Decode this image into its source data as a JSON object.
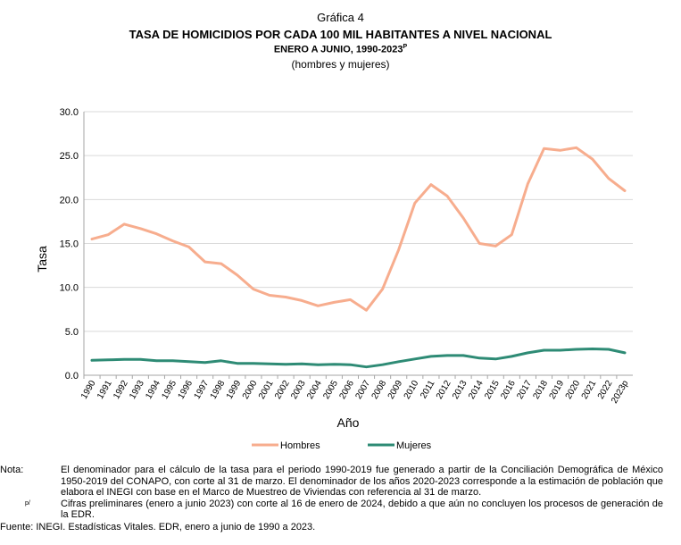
{
  "figure_label": "Gráfica 4",
  "title": "TASA DE HOMICIDIOS POR CADA 100 MIL HABITANTES A NIVEL NACIONAL",
  "subtitle_main": "ENERO A JUNIO, 1990-2023",
  "subtitle_sup": "P",
  "subtitle_note": "(hombres y mujeres)",
  "colors": {
    "hombres": "#f7ad8e",
    "mujeres": "#2e8b75",
    "grid": "#d9d9d9",
    "axis": "#a6a6a6"
  },
  "chart_data": {
    "type": "line",
    "xlabel": "Año",
    "ylabel": "Tasa",
    "ylim": [
      0,
      30
    ],
    "yticks": [
      "0.0",
      "5.0",
      "10.0",
      "15.0",
      "20.0",
      "25.0",
      "30.0"
    ],
    "grid": true,
    "legend": "bottom",
    "categories": [
      "1990",
      "1991",
      "1992",
      "1993",
      "1994",
      "1995",
      "1996",
      "1997",
      "1998",
      "1999",
      "2000",
      "2001",
      "2002",
      "2003",
      "2004",
      "2005",
      "2006",
      "2007",
      "2008",
      "2009",
      "2010",
      "2011",
      "2012",
      "2013",
      "2014",
      "2015",
      "2016",
      "2017",
      "2018",
      "2019",
      "2020",
      "2021",
      "2022",
      "2023p"
    ],
    "series": [
      {
        "name": "Hombres",
        "values": [
          15.5,
          16.0,
          17.2,
          16.7,
          16.1,
          15.3,
          14.6,
          12.9,
          12.7,
          11.4,
          9.8,
          9.1,
          8.9,
          8.5,
          7.9,
          8.3,
          8.6,
          7.4,
          9.8,
          14.3,
          19.6,
          21.7,
          20.4,
          17.9,
          15.0,
          14.7,
          16.0,
          21.8,
          25.8,
          25.6,
          25.9,
          24.6,
          22.4,
          21.0
        ]
      },
      {
        "name": "Mujeres",
        "values": [
          1.7,
          1.75,
          1.8,
          1.8,
          1.65,
          1.65,
          1.55,
          1.45,
          1.65,
          1.35,
          1.35,
          1.3,
          1.25,
          1.3,
          1.2,
          1.25,
          1.2,
          0.95,
          1.2,
          1.55,
          1.85,
          2.15,
          2.25,
          2.25,
          1.95,
          1.85,
          2.15,
          2.55,
          2.85,
          2.85,
          2.95,
          3.0,
          2.95,
          2.55
        ]
      }
    ]
  },
  "notes": {
    "nota_label": "Nota:",
    "nota_text_1": "El denominador para el cálculo de la tasa para el periodo 1990-2019 fue generado a partir de la Conciliación Demográfica de México 1950-2019 del CONAPO, con corte al 31 de marzo. El denominador de los años 2020-2023 corresponde a la estimación de población que elabora el INEGI con base en el Marco de Muestreo de Viviendas con referencia al 31 de marzo.",
    "p_label": "p/",
    "p_text": "Cifras preliminares (enero a junio 2023) con corte al 16 de enero de 2024, debido a que aún no concluyen los procesos de generación de la EDR.",
    "fuente": "Fuente: INEGI. Estadísticas Vitales. EDR, enero a junio de 1990 a 2023."
  }
}
